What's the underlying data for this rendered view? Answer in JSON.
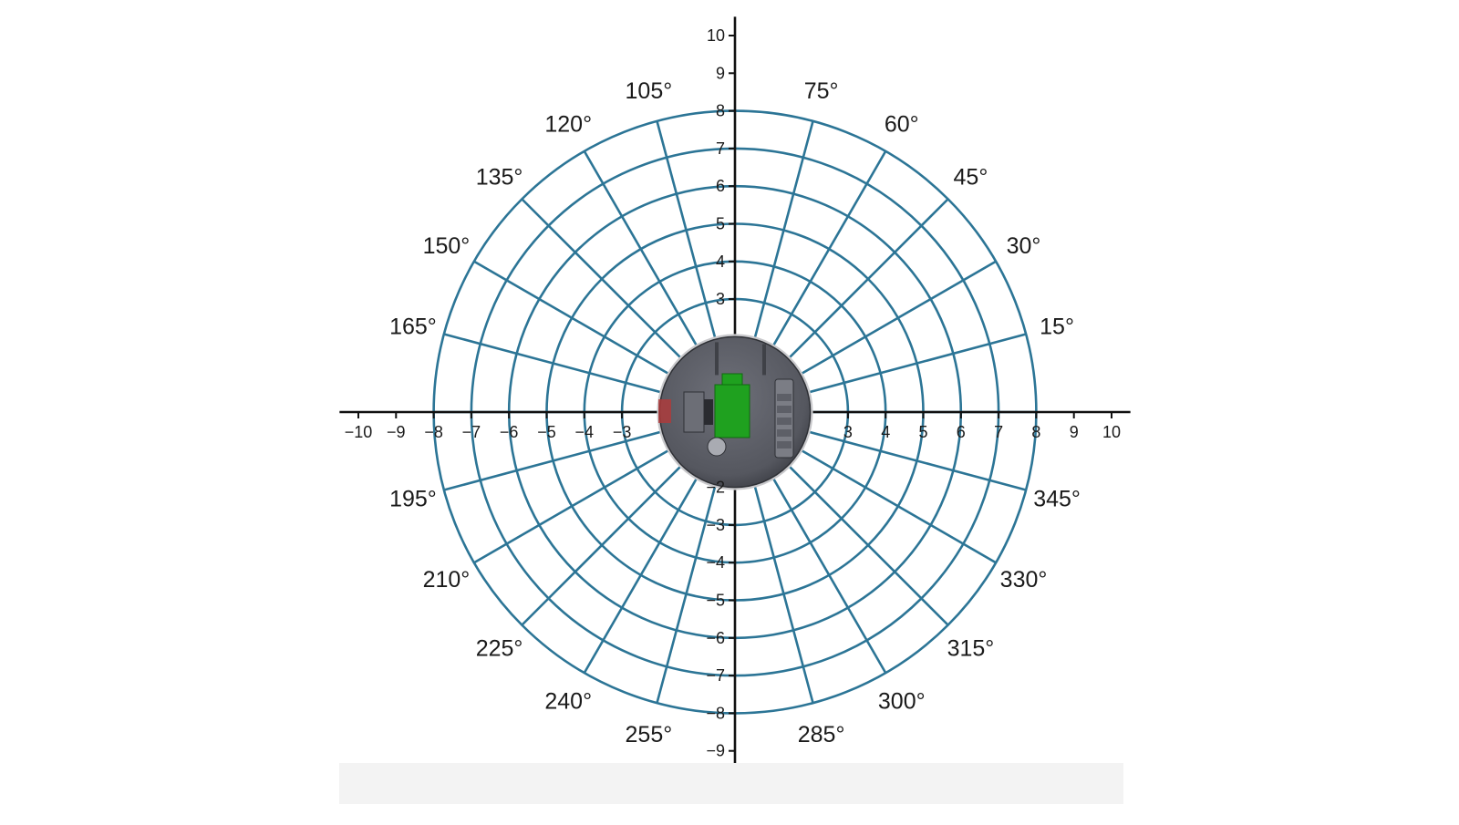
{
  "diagram": {
    "type": "polar-grid",
    "colors": {
      "grid": "#2c7596",
      "axis": "#111111",
      "text": "#1a1a1a",
      "robot_body": "#55575f",
      "robot_part_green": "#1fa11f",
      "robot_part_red": "#b23a3a"
    },
    "rings": [
      1,
      2,
      3,
      4,
      5,
      6,
      7,
      8
    ],
    "spoke_step_degrees": 15,
    "angle_labels": [
      {
        "deg": 15,
        "text": "15°"
      },
      {
        "deg": 30,
        "text": "30°"
      },
      {
        "deg": 45,
        "text": "45°"
      },
      {
        "deg": 60,
        "text": "60°"
      },
      {
        "deg": 75,
        "text": "75°"
      },
      {
        "deg": 105,
        "text": "105°"
      },
      {
        "deg": 120,
        "text": "120°"
      },
      {
        "deg": 135,
        "text": "135°"
      },
      {
        "deg": 150,
        "text": "150°"
      },
      {
        "deg": 165,
        "text": "165°"
      },
      {
        "deg": 195,
        "text": "195°"
      },
      {
        "deg": 210,
        "text": "210°"
      },
      {
        "deg": 225,
        "text": "225°"
      },
      {
        "deg": 240,
        "text": "240°"
      },
      {
        "deg": 255,
        "text": "255°"
      },
      {
        "deg": 285,
        "text": "285°"
      },
      {
        "deg": 300,
        "text": "300°"
      },
      {
        "deg": 315,
        "text": "315°"
      },
      {
        "deg": 330,
        "text": "330°"
      },
      {
        "deg": 345,
        "text": "345°"
      }
    ],
    "x_ticks": [
      {
        "v": -10,
        "text": "−10"
      },
      {
        "v": -9,
        "text": "−9"
      },
      {
        "v": -8,
        "text": "−8"
      },
      {
        "v": -7,
        "text": "−7"
      },
      {
        "v": -6,
        "text": "−6"
      },
      {
        "v": -5,
        "text": "−5"
      },
      {
        "v": -4,
        "text": "−4"
      },
      {
        "v": -3,
        "text": "−3"
      },
      {
        "v": 3,
        "text": "3"
      },
      {
        "v": 4,
        "text": "4"
      },
      {
        "v": 5,
        "text": "5"
      },
      {
        "v": 6,
        "text": "6"
      },
      {
        "v": 7,
        "text": "7"
      },
      {
        "v": 8,
        "text": "8"
      },
      {
        "v": 9,
        "text": "9"
      },
      {
        "v": 10,
        "text": "10"
      }
    ],
    "y_ticks": [
      {
        "v": 10,
        "text": "10"
      },
      {
        "v": 9,
        "text": "9"
      },
      {
        "v": 8,
        "text": "8"
      },
      {
        "v": 7,
        "text": "7"
      },
      {
        "v": 6,
        "text": "6"
      },
      {
        "v": 5,
        "text": "5"
      },
      {
        "v": 4,
        "text": "4"
      },
      {
        "v": 3,
        "text": "3"
      },
      {
        "v": -2,
        "text": "−2"
      },
      {
        "v": -3,
        "text": "−3"
      },
      {
        "v": -4,
        "text": "−4"
      },
      {
        "v": -5,
        "text": "−5"
      },
      {
        "v": -6,
        "text": "−6"
      },
      {
        "v": -7,
        "text": "−7"
      },
      {
        "v": -8,
        "text": "−8"
      },
      {
        "v": -9,
        "text": "−9"
      }
    ],
    "x_range": [
      -10.5,
      10.5
    ],
    "y_range": [
      -9.4,
      10.5
    ],
    "robot": {
      "radius": 2
    }
  }
}
